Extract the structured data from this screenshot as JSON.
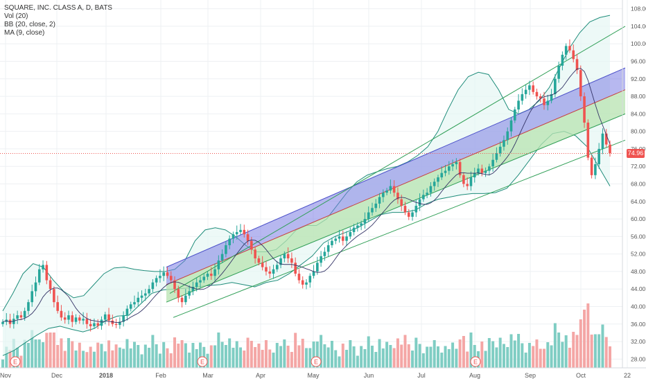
{
  "legend": {
    "title": "SQUARE, INC. CLASS A, D, BATS",
    "vol": "Vol (20)",
    "bb": "BB (20, close, 2)",
    "ma": "MA (9, close)"
  },
  "last_price": "74.96",
  "earnings_marker": "E",
  "colors": {
    "up": "#26a69a",
    "down": "#ef5350",
    "vol_up": "#7fcdc3",
    "vol_down": "#f4a6a5",
    "bb_line": "#1e8c7a",
    "bb_fill": "#e6f6f4",
    "channel_blue": "#7b7ee3",
    "channel_green": "#b7e3b0",
    "trend_green": "#2e9e55",
    "trend_red": "#c84040",
    "ma": "#333366",
    "last_price": "#ef5350"
  },
  "chart_data": {
    "type": "candlestick",
    "title": "SQUARE, INC. CLASS A, D, BATS",
    "y_axis": {
      "ticks": [
        28,
        32,
        36,
        40,
        44,
        48,
        52,
        56,
        60,
        64,
        68,
        72,
        76,
        80,
        84,
        88,
        92,
        96,
        100,
        104,
        108
      ],
      "range": [
        26,
        110
      ]
    },
    "x_axis": {
      "ticks": [
        "Nov",
        "Dec",
        "2018",
        "Feb",
        "Mar",
        "Apr",
        "May",
        "Jun",
        "Jul",
        "Aug",
        "Sep",
        "Oct",
        "22"
      ]
    },
    "last_price": 74.96,
    "closes": [
      36.5,
      37.0,
      36.0,
      37.2,
      38.0,
      37.5,
      39.0,
      41.0,
      43.5,
      45.5,
      48.5,
      49.5,
      46.0,
      44.0,
      41.0,
      39.0,
      37.5,
      37.0,
      38.0,
      36.5,
      37.5,
      36.8,
      37.2,
      36.0,
      35.5,
      36.2,
      35.6,
      37.0,
      38.2,
      36.8,
      36.0,
      35.8,
      36.5,
      38.0,
      39.5,
      40.5,
      41.0,
      42.0,
      42.5,
      43.0,
      44.0,
      45.5,
      46.5,
      47.0,
      47.8,
      47.0,
      46.0,
      44.0,
      42.0,
      41.0,
      42.5,
      43.5,
      44.5,
      45.5,
      46.0,
      46.8,
      47.5,
      47.0,
      48.5,
      50.5,
      52.0,
      54.0,
      55.5,
      56.5,
      57.0,
      57.5,
      56.5,
      55.0,
      53.0,
      51.0,
      50.0,
      49.0,
      48.0,
      47.5,
      48.5,
      49.5,
      51.0,
      52.0,
      51.0,
      50.0,
      47.5,
      46.0,
      45.0,
      45.5,
      47.0,
      48.0,
      50.0,
      51.5,
      52.5,
      54.0,
      55.0,
      55.5,
      56.0,
      55.0,
      56.0,
      57.0,
      58.0,
      58.5,
      59.0,
      60.0,
      61.5,
      62.5,
      63.5,
      65.0,
      66.0,
      66.5,
      67.5,
      66.0,
      64.5,
      63.0,
      61.5,
      60.5,
      61.5,
      63.0,
      64.5,
      65.5,
      66.0,
      67.5,
      68.5,
      69.5,
      70.5,
      71.0,
      72.0,
      72.5,
      73.0,
      70.0,
      68.0,
      67.5,
      69.5,
      70.5,
      71.5,
      70.5,
      71.0,
      72.0,
      73.5,
      75.0,
      76.5,
      78.0,
      80.0,
      82.5,
      85.0,
      87.0,
      88.5,
      89.5,
      90.5,
      89.0,
      88.0,
      87.5,
      86.0,
      87.0,
      88.5,
      92.0,
      95.0,
      97.5,
      99.5,
      98.5,
      96.5,
      94.0,
      88.0,
      82.0,
      74.0,
      70.0,
      72.5,
      76.0,
      79.5,
      77.0,
      75.0
    ],
    "bb_upper": [
      39.0,
      43.0,
      47.5,
      49.8,
      49.0,
      46.0,
      43.5,
      42.0,
      42.5,
      45.0,
      47.5,
      48.8,
      49.0,
      48.5,
      48.2,
      48.0,
      48.0,
      48.5,
      50.5,
      55.0,
      57.5,
      58.0,
      57.5,
      56.0,
      54.0,
      52.5,
      52.5,
      53.0,
      55.0,
      57.5,
      58.5,
      58.5,
      60.0,
      63.0,
      66.0,
      68.5,
      70.0,
      70.8,
      71.5,
      72.0,
      73.0,
      74.5,
      76.5,
      80.0,
      85.0,
      89.5,
      92.5,
      93.5,
      93.0,
      89.5,
      85.0,
      84.0,
      85.0,
      87.0,
      90.0,
      94.5,
      99.0,
      102.5,
      105.0,
      106.0,
      106.5
    ],
    "bb_lower": [
      28.8,
      30.0,
      31.8,
      33.5,
      35.0,
      35.5,
      34.8,
      34.2,
      35.0,
      36.8,
      37.8,
      38.0,
      40.5,
      43.0,
      43.8,
      44.0,
      44.2,
      44.5,
      44.8,
      45.0,
      45.5,
      45.0,
      44.5,
      45.5,
      46.0,
      47.5,
      49.5,
      51.5,
      54.5,
      56.0,
      57.0,
      58.0,
      59.5,
      61.0,
      61.5,
      61.5,
      62.0,
      63.5,
      64.5,
      65.0,
      65.5,
      65.8,
      65.8,
      66.0,
      67.0,
      70.0,
      73.5,
      77.0,
      79.5,
      80.0,
      79.0,
      76.5,
      72.0,
      67.5
    ],
    "annotations": [
      "Bollinger Bands (20, close, 2)",
      "MA (9, close)",
      "Regression trend channel",
      "Earnings markers E"
    ]
  }
}
